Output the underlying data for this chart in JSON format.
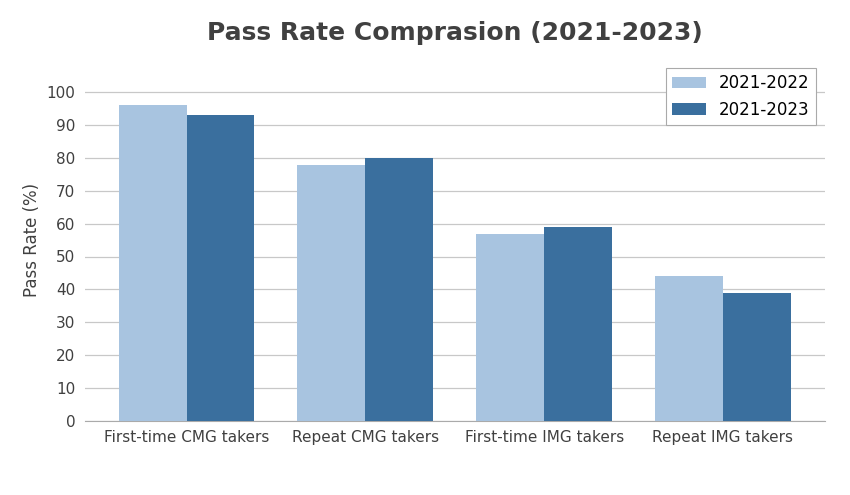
{
  "title": "Pass Rate Comprasion (2021-2023)",
  "categories": [
    "First-time CMG takers",
    "Repeat CMG takers",
    "First-time IMG takers",
    "Repeat IMG takers"
  ],
  "series": {
    "2021-2022": [
      96,
      78,
      57,
      44
    ],
    "2021-2023": [
      93,
      80,
      59,
      39
    ]
  },
  "color_2021_2022": "#A8C4E0",
  "color_2021_2023": "#3A6F9E",
  "ylabel": "Pass Rate (%)",
  "ylim": [
    0,
    110
  ],
  "yticks": [
    0,
    10,
    20,
    30,
    40,
    50,
    60,
    70,
    80,
    90,
    100
  ],
  "bar_width": 0.38,
  "legend_labels": [
    "2021-2022",
    "2021-2023"
  ],
  "background_color": "#FFFFFF",
  "grid_color": "#C8C8C8",
  "title_fontsize": 18,
  "axis_fontsize": 12,
  "legend_fontsize": 12,
  "title_color": "#404040",
  "tick_color": "#404040"
}
